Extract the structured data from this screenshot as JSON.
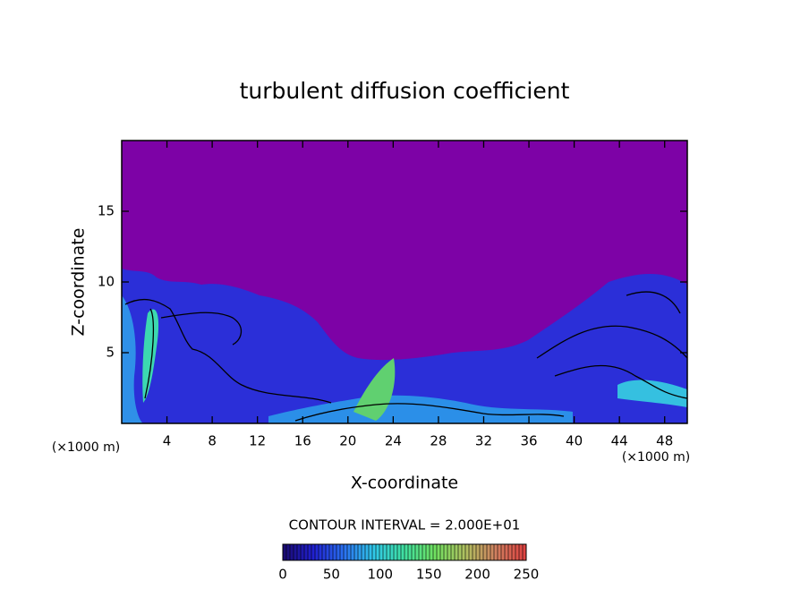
{
  "chart_data": {
    "type": "heatmap",
    "title": "turbulent diffusion coefficient",
    "x_label": "X-coordinate",
    "y_label": "Z-coordinate",
    "x_unit_label": "(×1000 m)",
    "y_unit_label": "(×1000 m)",
    "xlim": [
      0,
      50
    ],
    "xticks": [
      4,
      8,
      12,
      16,
      20,
      24,
      28,
      32,
      36,
      40,
      44,
      48
    ],
    "ylim": [
      0,
      20
    ],
    "yticks": [
      5,
      10,
      15
    ],
    "contour_label": "CONTOUR INTERVAL = 2.000E+01",
    "colorbar": {
      "lim": [
        0,
        250
      ],
      "ticks": [
        0,
        50,
        100,
        150,
        200,
        250
      ],
      "colors": [
        "#1a0a6e",
        "#2020d0",
        "#2a70f0",
        "#30c8e8",
        "#40e0a0",
        "#70e060",
        "#b0c060",
        "#d08060",
        "#e04040"
      ]
    },
    "background_color": "#7d02a6"
  }
}
